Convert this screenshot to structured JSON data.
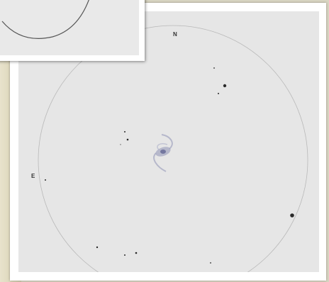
{
  "directions": {
    "north": "N",
    "east": "E"
  },
  "colors": {
    "paper": "#e6e6e6",
    "frame": "#ffffff",
    "background": "#d9d5c2",
    "ink": "#2a2a2a",
    "galaxy": "#7c80a8"
  },
  "objects": {
    "galaxy": "spiral-galaxy-sketch",
    "field_circle": "eyepiece-field-circle"
  }
}
